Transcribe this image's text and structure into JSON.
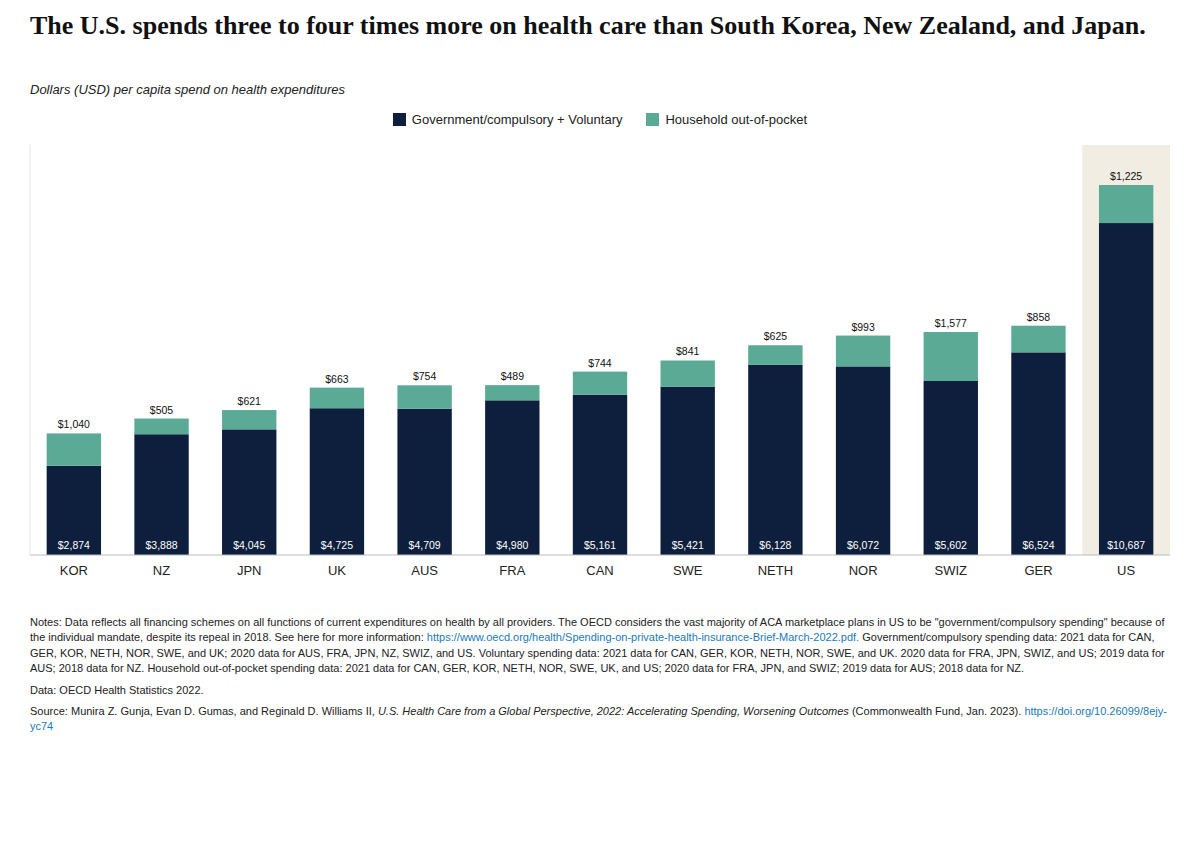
{
  "chart_data": {
    "type": "bar",
    "stacked": true,
    "title": "The U.S. spends three to four times more on health care than South Korea, New Zealand, and Japan.",
    "subtitle": "Dollars (USD) per capita spend on health expenditures",
    "categories": [
      "KOR",
      "NZ",
      "JPN",
      "UK",
      "AUS",
      "FRA",
      "CAN",
      "SWE",
      "NETH",
      "NOR",
      "SWIZ",
      "GER",
      "US"
    ],
    "series": [
      {
        "name": "Government/compulsory + Voluntary",
        "color": "#0d1f3c",
        "values": [
          2874,
          3888,
          4045,
          4725,
          4709,
          4980,
          5161,
          5421,
          6128,
          6072,
          5602,
          6524,
          10687
        ],
        "value_labels": [
          "$2,874",
          "$3,888",
          "$4,045",
          "$4,725",
          "$4,709",
          "$4,980",
          "$5,161",
          "$5,421",
          "$6,128",
          "$6,072",
          "$5,602",
          "$6,524",
          "$10,687"
        ]
      },
      {
        "name": "Household out-of-pocket",
        "color": "#5aaa95",
        "values": [
          1040,
          505,
          621,
          663,
          754,
          489,
          744,
          841,
          625,
          993,
          1577,
          858,
          1225
        ],
        "value_labels": [
          "$1,040",
          "$505",
          "$621",
          "$663",
          "$754",
          "$489",
          "$744",
          "$841",
          "$625",
          "$993",
          "$1,577",
          "$858",
          "$1,225"
        ]
      }
    ],
    "ylim": [
      0,
      13200
    ],
    "tick_labels": "x",
    "grid": false,
    "data_labels": true,
    "annotations": [
      "Notes: Data reflects all financing schemes on all functions of current expenditures on health by all providers. The OECD considers the vast majority of ACA marketplace plans in US to be \"government/compulsory spending\" because of the individual mandate, despite its repeal in 2018. See here for more information:",
      "https://www.oecd.org/health/Spending-on-private-health-insurance-Brief-March-2022.pdf.",
      "Government/compulsory spending data: 2021 data for CAN, GER, KOR, NETH, NOR, SWE, and UK; 2020 data for AUS, FRA, JPN, NZ, SWIZ, and US. Voluntary spending data: 2021 data for CAN, GER, KOR, NETH, NOR, SWE, and UK. 2020 data for FRA, JPN, SWIZ, and US; 2019 data for AUS; 2018 data for NZ. Household out-of-pocket spending data: 2021 data for CAN, GER, KOR, NETH, NOR, SWE, UK, and US; 2020 data for FRA, JPN, and SWIZ; 2019 data for AUS; 2018 data for NZ.",
      "Data: OECD Health Statistics 2022.",
      "Source: Munira Z. Gunja, Evan D. Gumas, and Reginald D. Williams II,",
      "U.S. Health Care from a Global Perspective, 2022: Accelerating Spending, Worsening Outcomes",
      "(Commonwealth Fund, Jan. 2023).",
      "https://doi.org/10.26099/8ejy-yc74"
    ]
  }
}
